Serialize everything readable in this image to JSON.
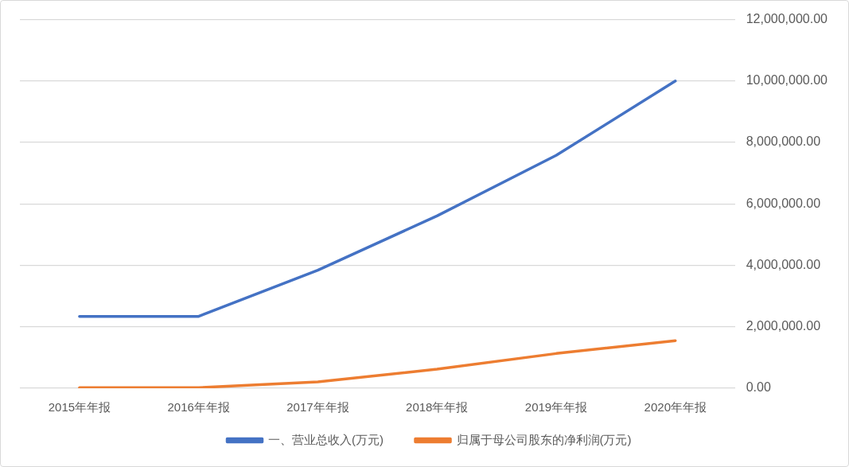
{
  "chart_data": {
    "type": "line",
    "categories": [
      "2015年年报",
      "2016年年报",
      "2017年年报",
      "2018年年报",
      "2019年年报",
      "2020年年报"
    ],
    "series": [
      {
        "name": "一、营业总收入(万元)",
        "color": "#4472c4",
        "values": [
          2340000,
          2340000,
          3840000,
          5610000,
          7580000,
          10000000
        ]
      },
      {
        "name": "归属于母公司股东的净利润(万元)",
        "color": "#ed7d31",
        "values": [
          20000,
          20000,
          210000,
          620000,
          1130000,
          1550000
        ]
      }
    ],
    "ylim": [
      0,
      12000000
    ],
    "yticks": [
      {
        "value": 0,
        "label": "0.00"
      },
      {
        "value": 2000000,
        "label": "2,000,000.00"
      },
      {
        "value": 4000000,
        "label": "4,000,000.00"
      },
      {
        "value": 6000000,
        "label": "6,000,000.00"
      },
      {
        "value": 8000000,
        "label": "8,000,000.00"
      },
      {
        "value": 10000000,
        "label": "10,000,000.00"
      },
      {
        "value": 12000000,
        "label": "12,000,000.00"
      }
    ],
    "grid": "y",
    "legend": "bottom",
    "marker": "none",
    "line_style": "solid"
  }
}
